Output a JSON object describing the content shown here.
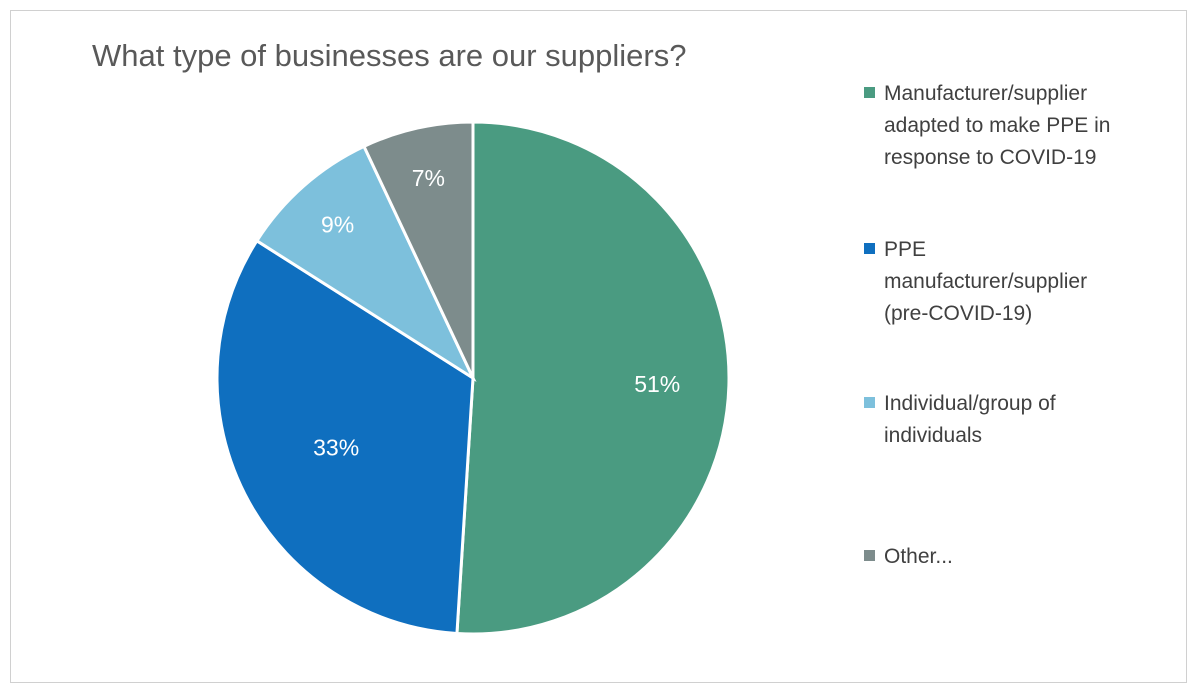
{
  "chart_data": {
    "type": "pie",
    "title": "What type of businesses are our suppliers?",
    "legend_position": "right",
    "slices": [
      {
        "label": "Manufacturer/supplier adapted to make PPE in response to COVID-19",
        "value": 51,
        "display": "51%",
        "color": "#4a9b81"
      },
      {
        "label": "PPE manufacturer/supplier (pre-COVID-19)",
        "value": 33,
        "display": "33%",
        "color": "#0f6fbf"
      },
      {
        "label": "Individual/group of individuals",
        "value": 9,
        "display": "9%",
        "color": "#7dc0dc"
      },
      {
        "label": "Other...",
        "value": 7,
        "display": "7%",
        "color": "#7d8c8c"
      }
    ]
  },
  "legend": {
    "items": [
      {
        "text": "Manufacturer/supplier\nadapted to make PPE in\nresponse to COVID-19",
        "color": "#4a9b81"
      },
      {
        "text": "PPE\nmanufacturer/supplier\n(pre-COVID-19)",
        "color": "#0f6fbf"
      },
      {
        "text": "Individual/group of\nindividuals",
        "color": "#7dc0dc"
      },
      {
        "text": "Other...",
        "color": "#7d8c8c"
      }
    ]
  }
}
